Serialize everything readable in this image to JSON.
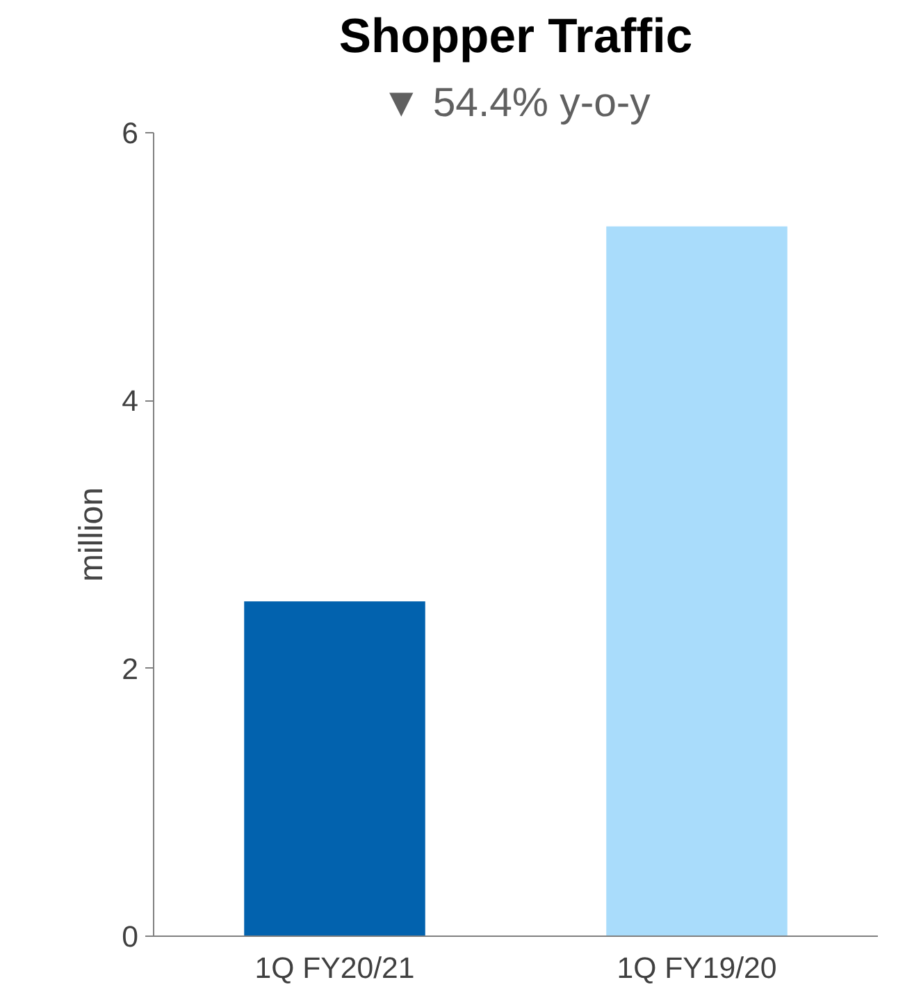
{
  "chart_data": {
    "type": "bar",
    "title": "Shopper Traffic",
    "annotations": [
      "▼ 54.4% y-o-y"
    ],
    "ylabel": "million",
    "categories": [
      "1Q FY20/21",
      "1Q FY19/20"
    ],
    "values": [
      2.5,
      5.3
    ],
    "colors": [
      "#0262ae",
      "#a9dcfb"
    ],
    "ylim": [
      0,
      6
    ],
    "yticks": [
      0,
      2,
      4,
      6
    ],
    "grid": false
  }
}
